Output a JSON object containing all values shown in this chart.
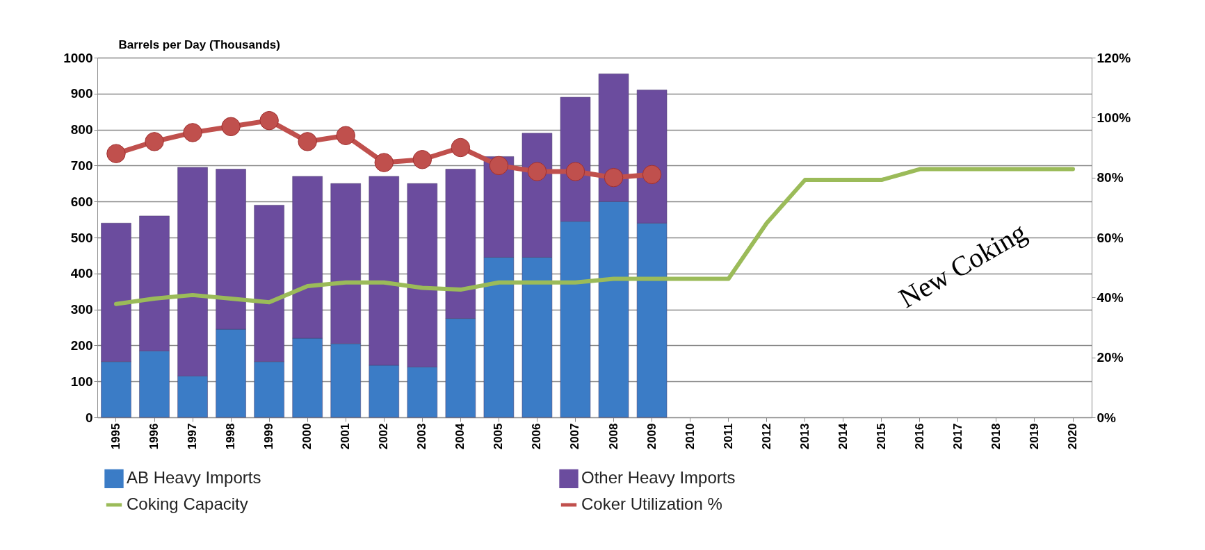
{
  "chart_data": {
    "type": "bar",
    "stacked": true,
    "ylabel": "Barrels per Day (Thousands)",
    "categories": [
      "1995",
      "1996",
      "1997",
      "1998",
      "1999",
      "2000",
      "2001",
      "2002",
      "2003",
      "2004",
      "2005",
      "2006",
      "2007",
      "2008",
      "2009",
      "2010",
      "2011",
      "2012",
      "2013",
      "2014",
      "2015",
      "2016",
      "2017",
      "2018",
      "2019",
      "2020"
    ],
    "series": [
      {
        "name": "AB Heavy Imports",
        "type": "bar",
        "color": "#3b7cc6",
        "values": [
          155,
          185,
          115,
          245,
          155,
          220,
          205,
          145,
          140,
          275,
          445,
          445,
          545,
          600,
          540,
          null,
          null,
          null,
          null,
          null,
          null,
          null,
          null,
          null,
          null,
          null
        ]
      },
      {
        "name": "Other Heavy Imports",
        "type": "bar",
        "color": "#6b4c9e",
        "values": [
          385,
          375,
          580,
          445,
          435,
          450,
          445,
          525,
          510,
          415,
          280,
          345,
          345,
          355,
          370,
          null,
          null,
          null,
          null,
          null,
          null,
          null,
          null,
          null,
          null,
          null
        ]
      },
      {
        "name": "Coking Capacity",
        "type": "line",
        "color": "#9bbb59",
        "marker": "none",
        "values": [
          315,
          330,
          340,
          330,
          320,
          365,
          375,
          375,
          360,
          355,
          375,
          375,
          375,
          385,
          385,
          385,
          385,
          540,
          660,
          660,
          660,
          690,
          690,
          690,
          690,
          690
        ]
      },
      {
        "name": "Coker Utilization  %",
        "type": "line",
        "axis": "y2",
        "color": "#c0504d",
        "marker": "circle",
        "values": [
          88,
          92,
          95,
          97,
          99,
          92,
          94,
          85,
          86,
          90,
          84,
          82,
          82,
          80,
          81,
          null,
          null,
          null,
          null,
          null,
          null,
          null,
          null,
          null,
          null,
          null
        ]
      }
    ],
    "ylim": [
      0,
      1000
    ],
    "yticks": [
      0,
      100,
      200,
      300,
      400,
      500,
      600,
      700,
      800,
      900,
      1000
    ],
    "y2lim": [
      0,
      120
    ],
    "y2ticks": [
      {
        "value": 0,
        "label": "0%"
      },
      {
        "value": 20,
        "label": "20%"
      },
      {
        "value": 40,
        "label": "40%"
      },
      {
        "value": 60,
        "label": "60%"
      },
      {
        "value": 80,
        "label": "80%"
      },
      {
        "value": 100,
        "label": "100%"
      },
      {
        "value": 120,
        "label": "120%"
      }
    ],
    "grid": "y",
    "legend": "bottom",
    "annotations": [
      "New Coking"
    ]
  }
}
